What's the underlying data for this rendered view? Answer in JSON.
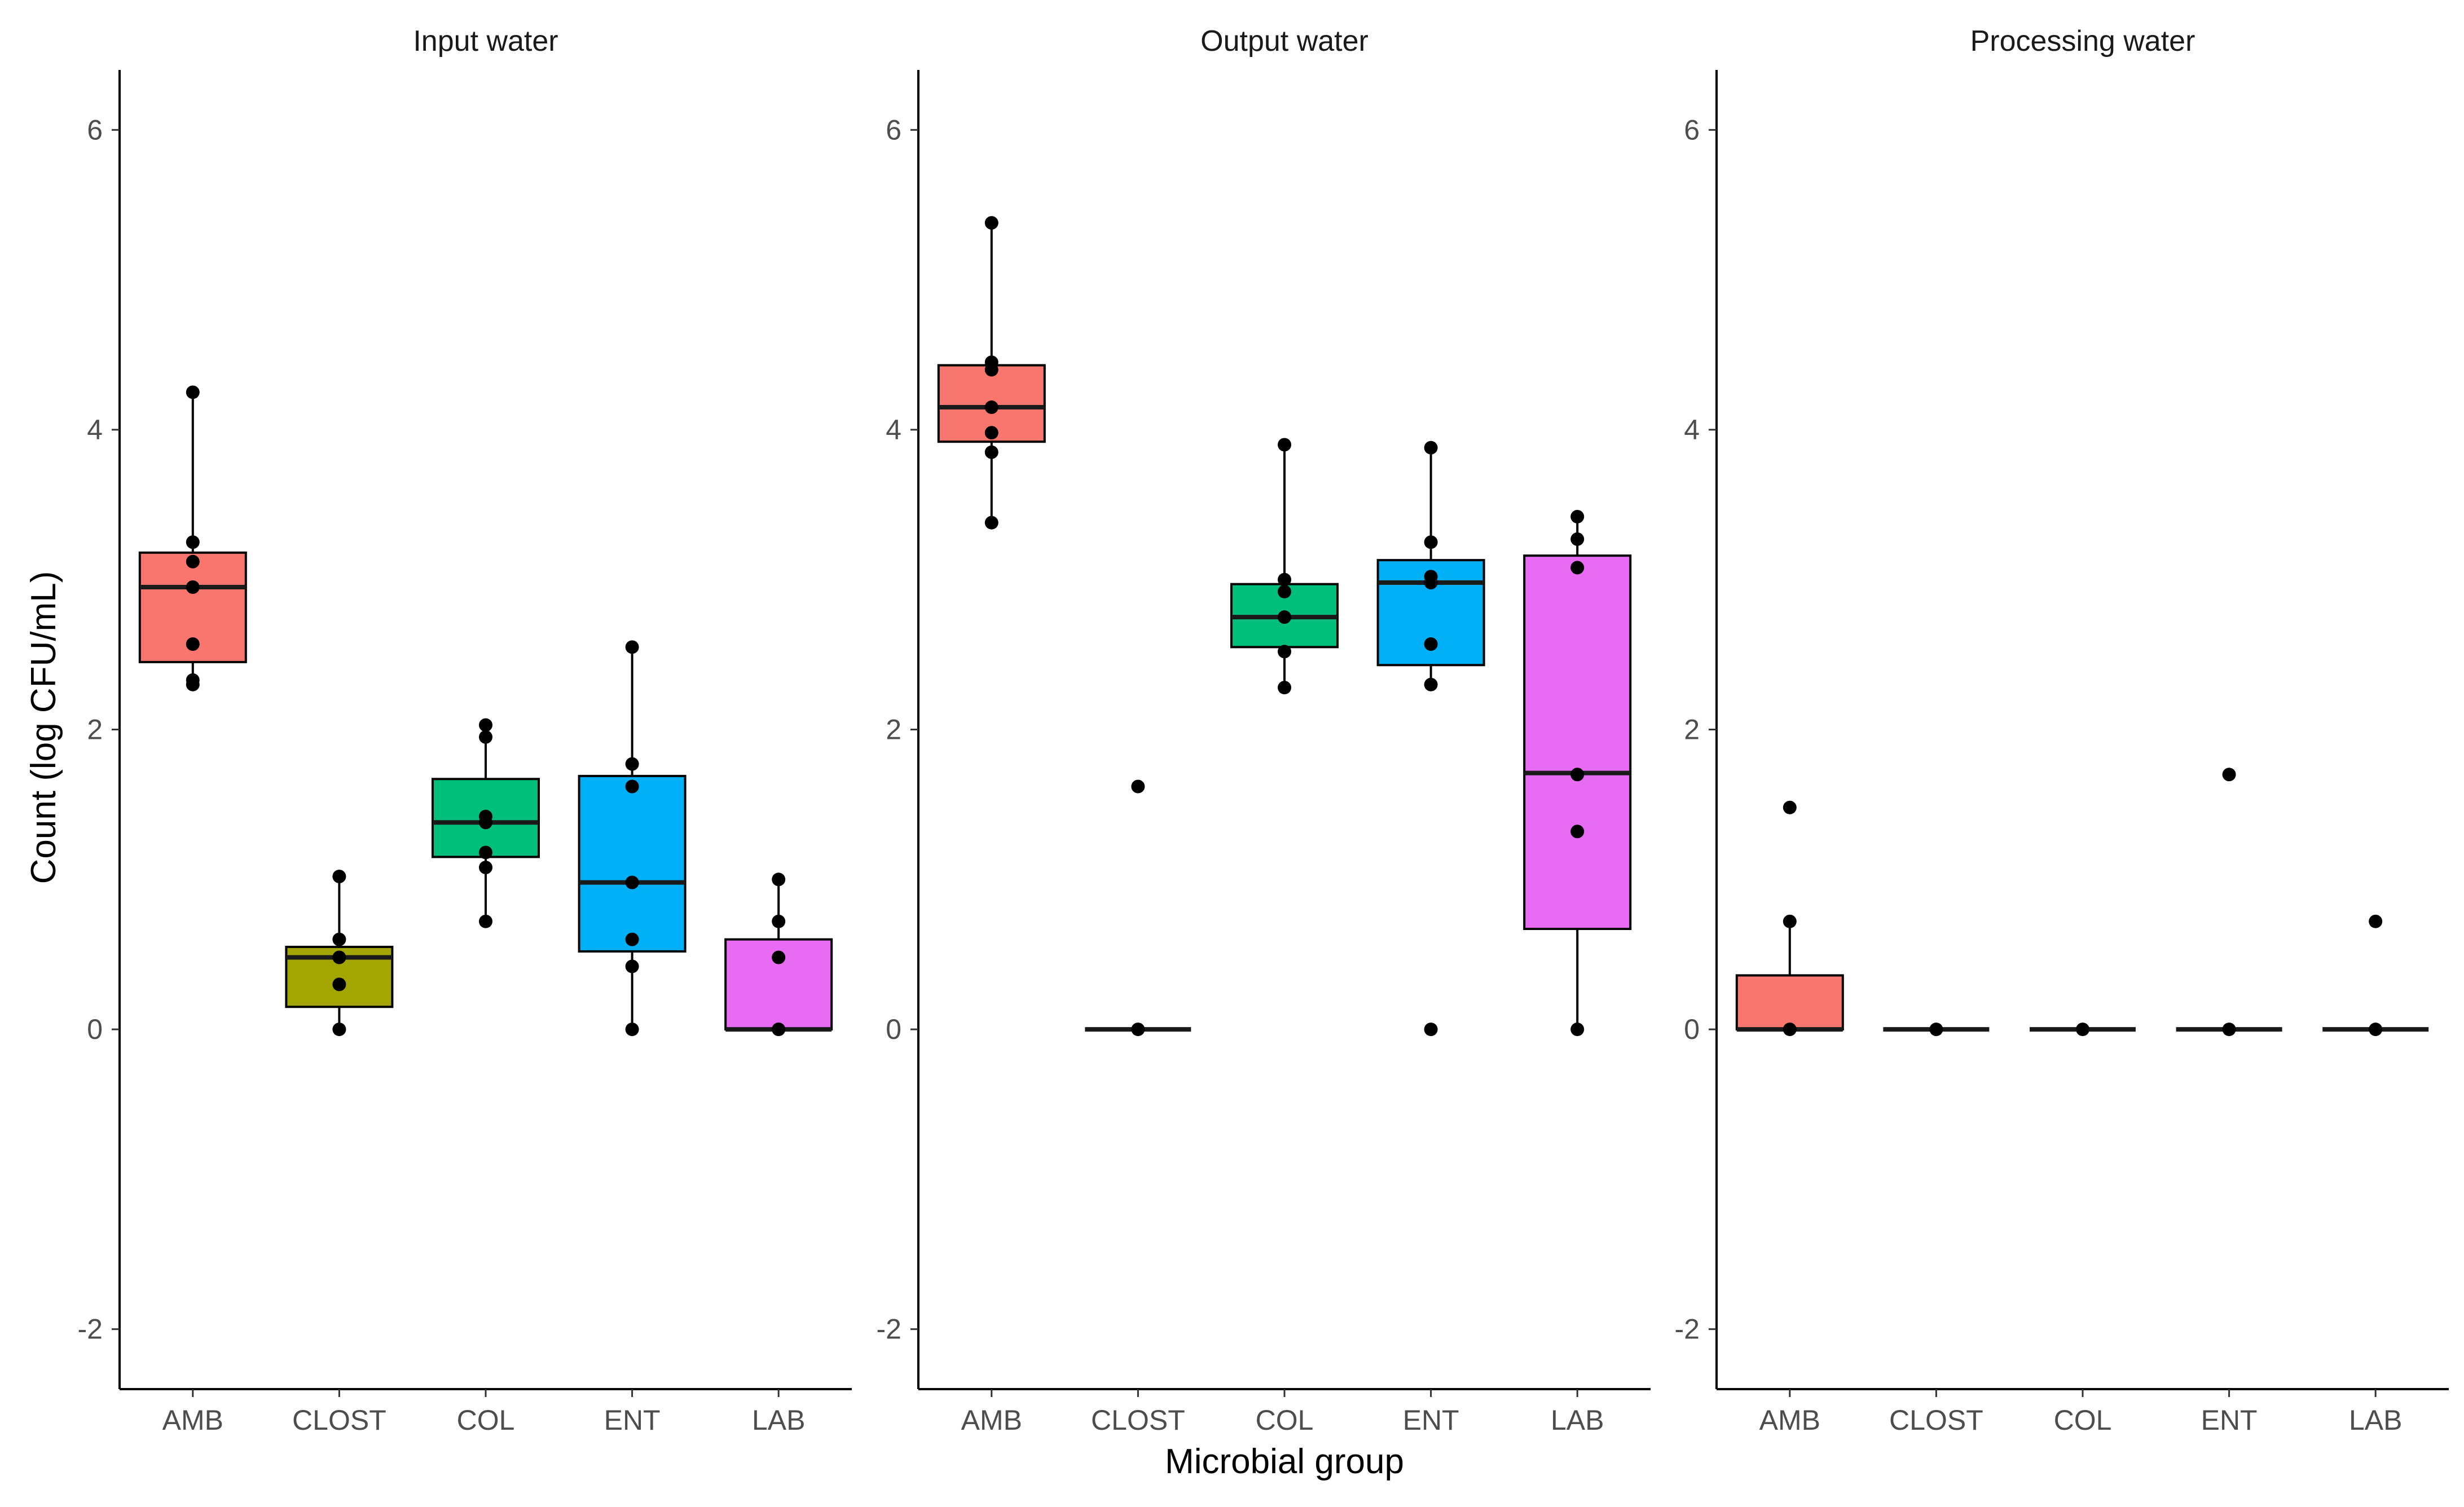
{
  "chart_data": {
    "type": "box",
    "ylabel": "Count (log CFU/mL)",
    "xlabel": "Microbial group",
    "ylim": [
      -2.4,
      6.4
    ],
    "yticks": [
      -2,
      0,
      2,
      4,
      6
    ],
    "grid": false,
    "legend": "none",
    "categories": [
      "AMB",
      "CLOST",
      "COL",
      "ENT",
      "LAB"
    ],
    "colors": {
      "AMB": "#F8766D",
      "CLOST": "#A3A500",
      "COL": "#00BF7D",
      "ENT": "#00B0F6",
      "LAB": "#E76BF3"
    },
    "panels": [
      {
        "title": "Input water",
        "boxes": [
          {
            "category": "AMB",
            "min": 2.3,
            "q1": 2.45,
            "median": 2.95,
            "q3": 3.18,
            "max": 4.25,
            "points": [
              2.3,
              2.33,
              2.57,
              2.95,
              3.12,
              3.25,
              4.25
            ]
          },
          {
            "category": "CLOST",
            "min": 0.0,
            "q1": 0.15,
            "median": 0.48,
            "q3": 0.55,
            "max": 1.02,
            "points": [
              0.0,
              0.3,
              0.48,
              0.6,
              1.02
            ]
          },
          {
            "category": "COL",
            "min": 0.72,
            "q1": 1.15,
            "median": 1.38,
            "q3": 1.67,
            "max": 2.03,
            "points": [
              0.72,
              1.08,
              1.18,
              1.38,
              1.42,
              1.95,
              2.03
            ]
          },
          {
            "category": "ENT",
            "min": 0.0,
            "q1": 0.52,
            "median": 0.98,
            "q3": 1.69,
            "max": 2.55,
            "points": [
              0.0,
              0.42,
              0.6,
              0.98,
              1.62,
              1.77,
              2.55
            ]
          },
          {
            "category": "LAB",
            "min": 0.0,
            "q1": 0.0,
            "median": 0.0,
            "q3": 0.6,
            "max": 1.0,
            "points": [
              0.0,
              0.0,
              0.48,
              0.72,
              1.0
            ]
          }
        ]
      },
      {
        "title": "Output water",
        "boxes": [
          {
            "category": "AMB",
            "min": 3.38,
            "q1": 3.92,
            "median": 4.15,
            "q3": 4.43,
            "max": 5.38,
            "points": [
              3.38,
              3.85,
              3.98,
              4.15,
              4.4,
              4.45,
              5.38
            ]
          },
          {
            "category": "CLOST",
            "min": 0.0,
            "q1": 0.0,
            "median": 0.0,
            "q3": 0.0,
            "max": 0.0,
            "points": [
              0.0,
              1.62
            ]
          },
          {
            "category": "COL",
            "min": 2.28,
            "q1": 2.55,
            "median": 2.75,
            "q3": 2.97,
            "max": 3.9,
            "points": [
              2.28,
              2.52,
              2.75,
              2.92,
              3.0,
              3.9
            ]
          },
          {
            "category": "ENT",
            "min": 2.3,
            "q1": 2.43,
            "median": 2.98,
            "q3": 3.13,
            "max": 3.88,
            "points": [
              0.0,
              2.3,
              2.57,
              2.98,
              3.02,
              3.25,
              3.88
            ]
          },
          {
            "category": "LAB",
            "min": 0.0,
            "q1": 0.67,
            "median": 1.71,
            "q3": 3.16,
            "max": 3.42,
            "points": [
              0.0,
              1.32,
              1.7,
              3.08,
              3.27,
              3.42
            ]
          }
        ]
      },
      {
        "title": "Processing water",
        "boxes": [
          {
            "category": "AMB",
            "min": 0.0,
            "q1": 0.0,
            "median": 0.0,
            "q3": 0.36,
            "max": 0.72,
            "points": [
              0.0,
              0.72,
              1.48
            ]
          },
          {
            "category": "CLOST",
            "min": 0.0,
            "q1": 0.0,
            "median": 0.0,
            "q3": 0.0,
            "max": 0.0,
            "points": [
              0.0
            ]
          },
          {
            "category": "COL",
            "min": 0.0,
            "q1": 0.0,
            "median": 0.0,
            "q3": 0.0,
            "max": 0.0,
            "points": [
              0.0
            ]
          },
          {
            "category": "ENT",
            "min": 0.0,
            "q1": 0.0,
            "median": 0.0,
            "q3": 0.0,
            "max": 0.0,
            "points": [
              0.0,
              1.7
            ]
          },
          {
            "category": "LAB",
            "min": 0.0,
            "q1": 0.0,
            "median": 0.0,
            "q3": 0.0,
            "max": 0.0,
            "points": [
              0.0,
              0.72
            ]
          }
        ]
      }
    ]
  }
}
